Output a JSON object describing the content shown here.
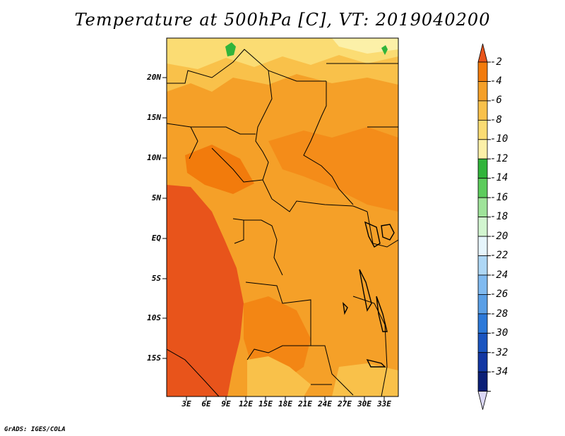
{
  "title": "Temperature at 500hPa [C], VT: 2019040200",
  "footer": "GrADS: IGES/COLA",
  "map": {
    "lat_labels": [
      "20N",
      "15N",
      "10N",
      "5N",
      "EQ",
      "5S",
      "10S",
      "15S"
    ],
    "lon_labels": [
      "3E",
      "6E",
      "9E",
      "12E",
      "15E",
      "18E",
      "21E",
      "24E",
      "27E",
      "30E",
      "33E"
    ]
  },
  "colorbar": {
    "labels": [
      "-2",
      "-4",
      "-6",
      "-8",
      "-10",
      "-12",
      "-14",
      "-16",
      "-18",
      "-20",
      "-22",
      "-24",
      "-26",
      "-28",
      "-30",
      "-32",
      "-34"
    ],
    "colors": [
      "#e8541b",
      "#f27b0c",
      "#f5a028",
      "#f9c14a",
      "#fbdc73",
      "#fcf0a8",
      "#31b43b",
      "#5ccc5c",
      "#9fe39a",
      "#d2f5d0",
      "#e6f5fc",
      "#aed7f5",
      "#80baf0",
      "#5a9fe6",
      "#2c79d9",
      "#1a55c0",
      "#1237a3",
      "#0b1f77",
      "#dcd8f6"
    ]
  }
}
